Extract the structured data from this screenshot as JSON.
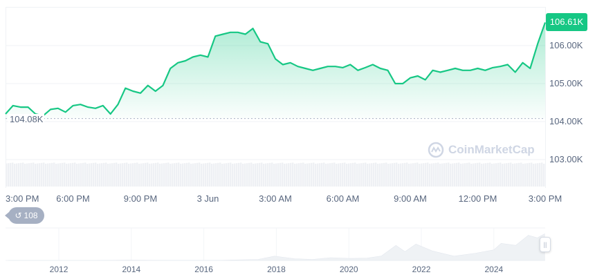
{
  "chart_data": {
    "type": "area",
    "title": "",
    "xlabel": "",
    "ylabel": "",
    "x": [
      "15:00",
      "15:20",
      "15:40",
      "16:00",
      "16:20",
      "16:40",
      "17:00",
      "17:20",
      "17:40",
      "18:00",
      "18:20",
      "18:40",
      "19:00",
      "19:20",
      "19:40",
      "20:00",
      "20:20",
      "20:40",
      "21:00",
      "21:20",
      "21:40",
      "22:00",
      "22:20",
      "22:40",
      "23:00",
      "23:20",
      "23:40",
      "00:00",
      "00:20",
      "00:40",
      "01:00",
      "01:20",
      "01:40",
      "02:00",
      "02:20",
      "02:40",
      "03:00",
      "03:20",
      "03:40",
      "04:00",
      "04:20",
      "04:40",
      "05:00",
      "05:20",
      "05:40",
      "06:00",
      "06:20",
      "06:40",
      "07:00",
      "07:20",
      "07:40",
      "08:00",
      "08:20",
      "08:40",
      "09:00",
      "09:20",
      "09:40",
      "10:00",
      "10:20",
      "10:40",
      "11:00",
      "11:20",
      "11:40",
      "12:00",
      "12:20",
      "12:40",
      "13:00",
      "13:20",
      "13:40",
      "14:00",
      "14:20",
      "14:40",
      "15:00"
    ],
    "values": [
      104.2,
      104.42,
      104.38,
      104.38,
      104.2,
      104.15,
      104.32,
      104.35,
      104.25,
      104.42,
      104.45,
      104.38,
      104.35,
      104.42,
      104.2,
      104.45,
      104.88,
      104.8,
      104.75,
      104.95,
      104.8,
      104.95,
      105.4,
      105.55,
      105.6,
      105.7,
      105.75,
      105.7,
      106.25,
      106.3,
      106.35,
      106.35,
      106.3,
      106.45,
      106.1,
      106.05,
      105.65,
      105.5,
      105.55,
      105.45,
      105.4,
      105.35,
      105.4,
      105.45,
      105.45,
      105.42,
      105.5,
      105.35,
      105.42,
      105.5,
      105.4,
      105.35,
      105.0,
      105.0,
      105.15,
      105.2,
      105.1,
      105.35,
      105.3,
      105.35,
      105.4,
      105.35,
      105.35,
      105.4,
      105.35,
      105.42,
      105.45,
      105.5,
      105.3,
      105.55,
      105.4,
      106.05,
      106.61
    ],
    "unit": "K",
    "ylim": [
      102.6,
      107.0
    ],
    "y_ticks": [
      "106.00K",
      "105.00K",
      "104.00K",
      "103.00K"
    ],
    "x_ticks": [
      "3:00 PM",
      "6:00 PM",
      "9:00 PM",
      "3 Jun",
      "3:00 AM",
      "6:00 AM",
      "9:00 AM",
      "12:00 PM",
      "3:00 PM"
    ],
    "current_price_label": "106.61K",
    "open_price_label": "104.08K",
    "open_price": 104.08,
    "grid": true,
    "line_color": "#16c784",
    "navigator": {
      "x_ticks": [
        "2012",
        "2014",
        "2016",
        "2018",
        "2020",
        "2022",
        "2024"
      ],
      "years": [
        2010.6,
        2013.0,
        2013.9,
        2015.0,
        2016.5,
        2017.5,
        2017.95,
        2018.5,
        2019.0,
        2019.5,
        2020.0,
        2020.5,
        2020.9,
        2021.3,
        2021.55,
        2021.85,
        2022.3,
        2022.9,
        2023.5,
        2024.0,
        2024.2,
        2024.6,
        2024.95,
        2025.2,
        2025.4
      ],
      "values": [
        0,
        0.1,
        1,
        0.3,
        0.6,
        4,
        17,
        7,
        4,
        11,
        8,
        9,
        18,
        60,
        35,
        65,
        38,
        17,
        29,
        42,
        68,
        60,
        100,
        90,
        106
      ],
      "color": "#eff2f5"
    }
  },
  "badges": {
    "history_count": "108"
  },
  "watermark": "CoinMarketCap"
}
